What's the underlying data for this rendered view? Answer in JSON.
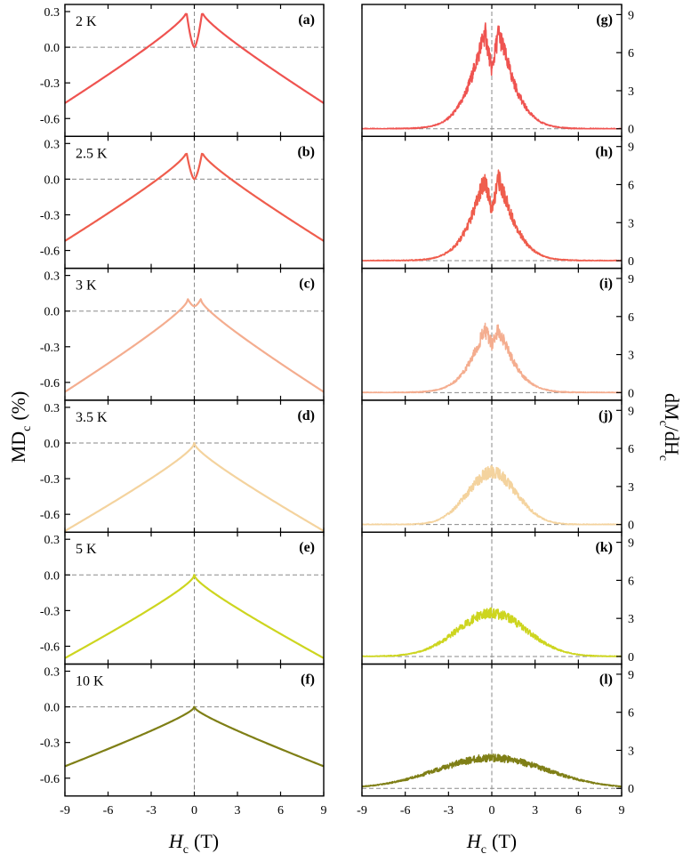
{
  "chart_data": {
    "type": "line",
    "x_tick_labels": [
      "-9",
      "-6",
      "-3",
      "0",
      "3",
      "6",
      "9"
    ],
    "xlim": [
      -9,
      9
    ],
    "left": {
      "ylabel": {
        "main": "MD",
        "sub": "c",
        "unit": "(%)"
      },
      "ylim": [
        -0.75,
        0.36
      ],
      "y_tick_labels": [
        "0.3",
        "0.0",
        "-0.3",
        "-0.6"
      ]
    },
    "right": {
      "ylabel": {
        "main": "dM",
        "sub": "c",
        "mid": "/dH",
        "sub2": "c"
      },
      "ylim": [
        -0.6,
        9.8
      ],
      "y_tick_labels": [
        "9",
        "6",
        "3",
        "0"
      ]
    },
    "xlabel": {
      "main": "H",
      "sub": "c",
      "unit": "(T)"
    },
    "panels": [
      {
        "temperature": "2 K",
        "color": "#ef5350",
        "md": {
          "label": "(a)",
          "edge": -0.47,
          "peak": 0.3,
          "peak_h": 0.55,
          "center": 0.0
        },
        "dm": {
          "label": "(g)",
          "peak": 7.5,
          "center": 4.6
        }
      },
      {
        "temperature": "2.5 K",
        "color": "#ef5d4d",
        "md": {
          "label": "(b)",
          "edge": -0.52,
          "peak": 0.23,
          "peak_h": 0.55,
          "center": 0.0
        },
        "dm": {
          "label": "(h)",
          "peak": 6.4,
          "center": 3.9
        }
      },
      {
        "temperature": "3 K",
        "color": "#f4ad8f",
        "md": {
          "label": "(c)",
          "edge": -0.68,
          "peak": 0.1,
          "peak_h": 0.45,
          "center": 0.04
        },
        "dm": {
          "label": "(i)",
          "peak": 4.9,
          "center": 3.8
        }
      },
      {
        "temperature": "3.5 K",
        "color": "#f4d39e",
        "md": {
          "label": "(d)",
          "edge": -0.74,
          "center": 0.0
        },
        "dm": {
          "label": "(j)",
          "peak": 4.1
        }
      },
      {
        "temperature": "5 K",
        "color": "#cdd51f",
        "md": {
          "label": "(e)",
          "edge": -0.7,
          "center": 0.0
        },
        "dm": {
          "label": "(k)",
          "peak": 3.4
        }
      },
      {
        "temperature": "10 K",
        "color": "#7f7f16",
        "md": {
          "label": "(f)",
          "edge": -0.5,
          "center": 0.0
        },
        "dm": {
          "label": "(l)",
          "peak": 2.4
        }
      }
    ]
  }
}
